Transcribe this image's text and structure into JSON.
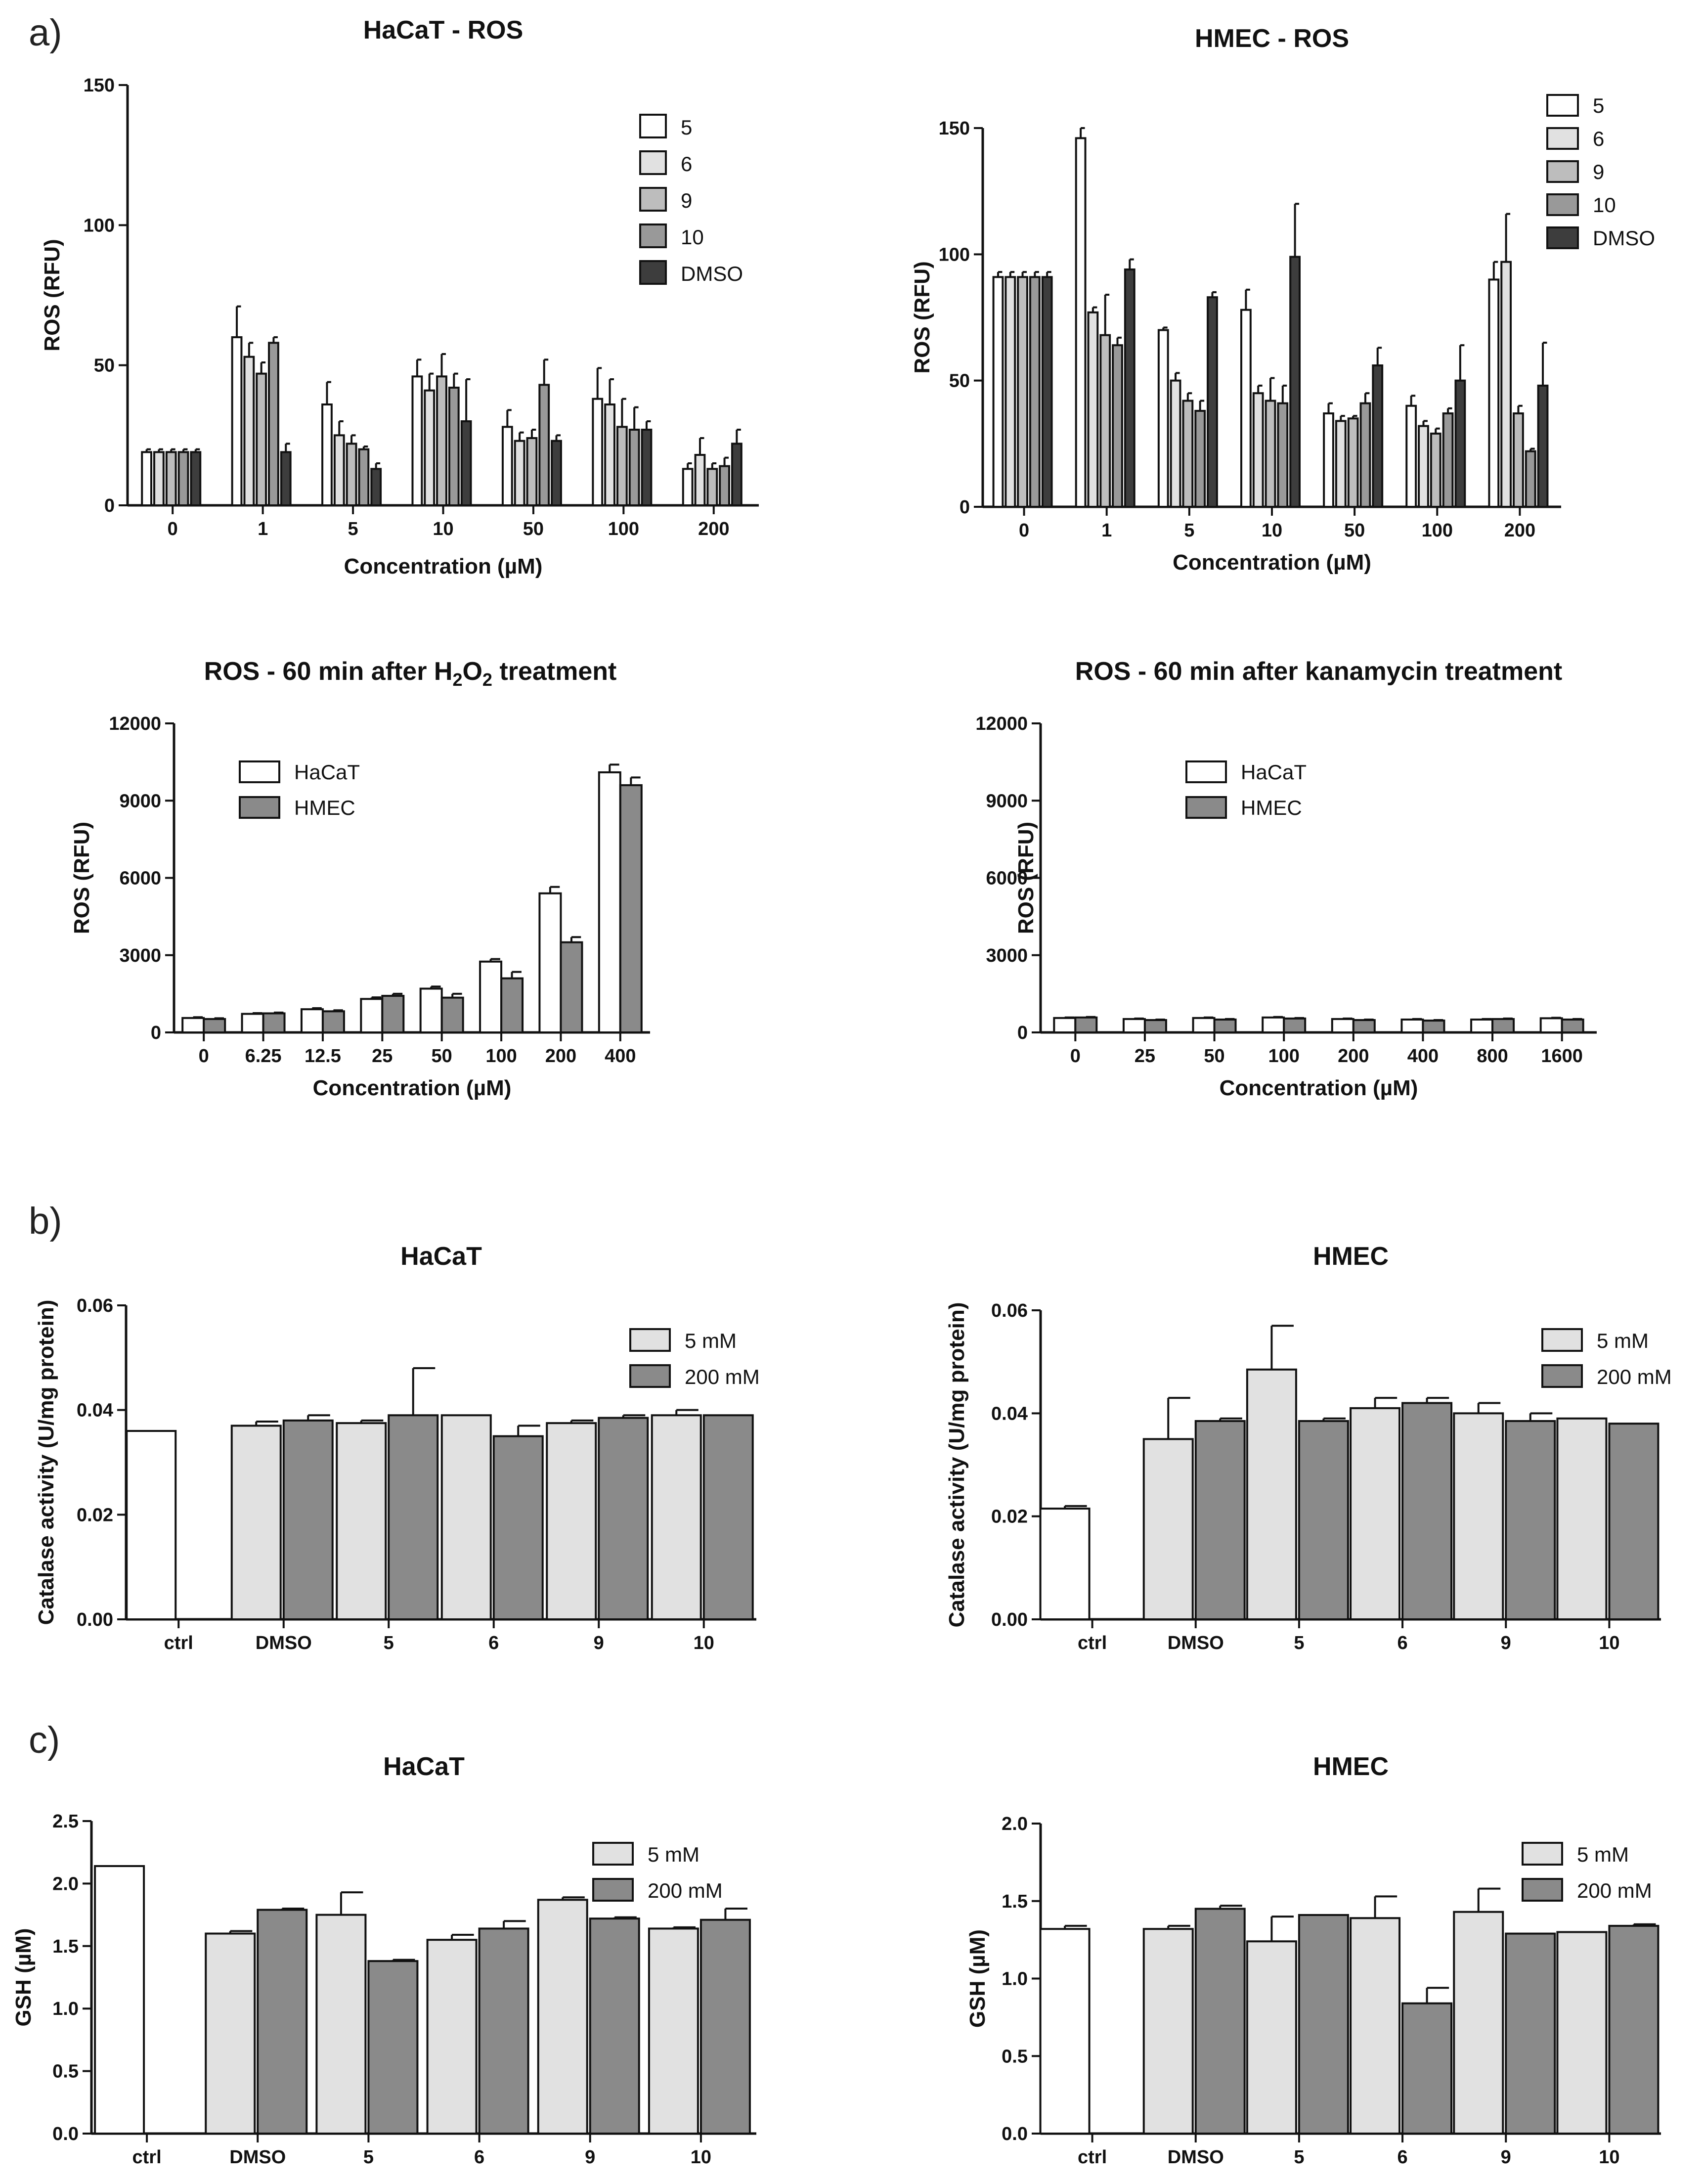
{
  "panel_labels": [
    "a)",
    "b)",
    "c)"
  ],
  "chart_data": [
    {
      "id": "a1",
      "type": "bar",
      "title": "HaCaT - ROS",
      "xlabel": "Concentration (µM)",
      "ylabel": "ROS (RFU)",
      "ylim": [
        0,
        150
      ],
      "yticks": [
        "0",
        "50",
        "100",
        "150"
      ],
      "categories": [
        "0",
        "1",
        "5",
        "10",
        "50",
        "100",
        "200"
      ],
      "series": [
        {
          "name": "5",
          "color": "#ffffff",
          "values": [
            19,
            60,
            36,
            46,
            28,
            38,
            13
          ],
          "errors": [
            1,
            11,
            8,
            6,
            6,
            11,
            2
          ]
        },
        {
          "name": "6",
          "color": "#e1e1e1",
          "values": [
            19,
            53,
            25,
            41,
            23,
            36,
            18
          ],
          "errors": [
            1,
            5,
            5,
            6,
            3,
            9,
            6
          ]
        },
        {
          "name": "9",
          "color": "#bdbdbd",
          "values": [
            19,
            47,
            22,
            46,
            24,
            28,
            13
          ],
          "errors": [
            1,
            4,
            3,
            8,
            3,
            10,
            2
          ]
        },
        {
          "name": "10",
          "color": "#999999",
          "values": [
            19,
            58,
            20,
            42,
            43,
            27,
            14
          ],
          "errors": [
            1,
            2,
            1,
            5,
            9,
            8,
            3
          ]
        },
        {
          "name": "DMSO",
          "color": "#3d3d3d",
          "values": [
            19,
            19,
            13,
            30,
            23,
            27,
            22
          ],
          "errors": [
            1,
            3,
            2,
            15,
            2,
            3,
            5
          ]
        }
      ]
    },
    {
      "id": "a2",
      "type": "bar",
      "title": "HMEC - ROS",
      "xlabel": "Concentration (µM)",
      "ylabel": "ROS (RFU)",
      "ylim": [
        0,
        150
      ],
      "yticks": [
        "0",
        "50",
        "100",
        "150"
      ],
      "categories": [
        "0",
        "1",
        "5",
        "10",
        "50",
        "100",
        "200"
      ],
      "series": [
        {
          "name": "5",
          "color": "#ffffff",
          "values": [
            91,
            146,
            70,
            78,
            37,
            40,
            90
          ],
          "errors": [
            2,
            4,
            1,
            8,
            4,
            4,
            7
          ]
        },
        {
          "name": "6",
          "color": "#e1e1e1",
          "values": [
            91,
            77,
            50,
            45,
            34,
            32,
            97
          ],
          "errors": [
            2,
            2,
            3,
            3,
            2,
            2,
            19
          ]
        },
        {
          "name": "9",
          "color": "#bdbdbd",
          "values": [
            91,
            68,
            42,
            42,
            35,
            29,
            37
          ],
          "errors": [
            2,
            16,
            3,
            9,
            1,
            2,
            3
          ]
        },
        {
          "name": "10",
          "color": "#999999",
          "values": [
            91,
            64,
            38,
            41,
            41,
            37,
            22
          ],
          "errors": [
            2,
            3,
            4,
            7,
            4,
            2,
            1
          ]
        },
        {
          "name": "DMSO",
          "color": "#3d3d3d",
          "values": [
            91,
            94,
            83,
            99,
            56,
            50,
            48
          ],
          "errors": [
            2,
            4,
            2,
            21,
            7,
            14,
            17
          ]
        }
      ]
    },
    {
      "id": "a3",
      "type": "bar",
      "title_pre": "ROS - 60 min after H",
      "title_sub1": "2",
      "title_mid": "O",
      "title_sub2": "2",
      "title_post": " treatment",
      "xlabel": "Concentration (µM)",
      "ylabel": "ROS (RFU)",
      "ylim": [
        0,
        12000
      ],
      "yticks": [
        "0",
        "3000",
        "6000",
        "9000",
        "12000"
      ],
      "categories": [
        "0",
        "6.25",
        "12.5",
        "25",
        "50",
        "100",
        "200",
        "400"
      ],
      "series": [
        {
          "name": "HaCaT",
          "color": "#ffffff",
          "values": [
            560,
            720,
            900,
            1300,
            1700,
            2750,
            5400,
            10100
          ],
          "errors": [
            30,
            30,
            40,
            60,
            80,
            100,
            250,
            300
          ]
        },
        {
          "name": "HMEC",
          "color": "#8a8a8a",
          "values": [
            520,
            740,
            820,
            1420,
            1350,
            2100,
            3500,
            9600
          ],
          "errors": [
            30,
            30,
            40,
            80,
            150,
            250,
            200,
            300
          ]
        }
      ]
    },
    {
      "id": "a4",
      "type": "bar",
      "title": "ROS - 60 min after kanamycin treatment",
      "xlabel": "Concentration (µM)",
      "ylabel": "ROS (RFU)",
      "ylim": [
        0,
        12000
      ],
      "yticks": [
        "0",
        "3000",
        "6000",
        "9000",
        "12000"
      ],
      "categories": [
        "0",
        "25",
        "50",
        "100",
        "200",
        "400",
        "800",
        "1600"
      ],
      "series": [
        {
          "name": "HaCaT",
          "color": "#ffffff",
          "values": [
            560,
            520,
            560,
            580,
            520,
            500,
            500,
            550
          ],
          "errors": [
            20,
            20,
            20,
            20,
            20,
            20,
            20,
            20
          ]
        },
        {
          "name": "HMEC",
          "color": "#8a8a8a",
          "values": [
            580,
            480,
            500,
            540,
            480,
            460,
            520,
            500
          ],
          "errors": [
            20,
            20,
            20,
            20,
            20,
            20,
            20,
            20
          ]
        }
      ]
    },
    {
      "id": "b1",
      "type": "bar",
      "title": "HaCaT",
      "xlabel": "",
      "ylabel": "Catalase activity (U/mg protein)",
      "ylim": [
        0,
        0.06
      ],
      "yticks": [
        "0.00",
        "0.02",
        "0.04",
        "0.06"
      ],
      "categories": [
        "ctrl",
        "DMSO",
        "5",
        "6",
        "9",
        "10"
      ],
      "ctrl": {
        "value": 0.036,
        "error": 0,
        "color": "#ffffff"
      },
      "series": [
        {
          "name": "5 mM",
          "color": "#e1e1e1",
          "values": [
            null,
            0.037,
            0.0375,
            0.039,
            0.0375,
            0.039
          ],
          "errors": [
            0,
            0.0008,
            0.0005,
            0,
            0.0005,
            0.001
          ]
        },
        {
          "name": "200 mM",
          "color": "#8a8a8a",
          "values": [
            null,
            0.038,
            0.039,
            0.035,
            0.0385,
            0.039
          ],
          "errors": [
            0,
            0.001,
            0.009,
            0.002,
            0.0005,
            0
          ]
        }
      ]
    },
    {
      "id": "b2",
      "type": "bar",
      "title": "HMEC",
      "xlabel": "",
      "ylabel": "Catalase activity (U/mg protein)",
      "ylim": [
        0,
        0.06
      ],
      "yticks": [
        "0.00",
        "0.02",
        "0.04",
        "0.06"
      ],
      "categories": [
        "ctrl",
        "DMSO",
        "5",
        "6",
        "9",
        "10"
      ],
      "ctrl": {
        "value": 0.0215,
        "error": 0.0005,
        "color": "#ffffff"
      },
      "series": [
        {
          "name": "5 mM",
          "color": "#e1e1e1",
          "values": [
            null,
            0.035,
            0.0485,
            0.041,
            0.04,
            0.039
          ],
          "errors": [
            0,
            0.008,
            0.0085,
            0.002,
            0.002,
            0
          ]
        },
        {
          "name": "200 mM",
          "color": "#8a8a8a",
          "values": [
            null,
            0.0385,
            0.0385,
            0.042,
            0.0385,
            0.038
          ],
          "errors": [
            0,
            0.0005,
            0.0005,
            0.001,
            0.0015,
            0
          ]
        }
      ]
    },
    {
      "id": "c1",
      "type": "bar",
      "title": "HaCaT",
      "xlabel": "",
      "ylabel": "GSH (µM)",
      "ylim": [
        0,
        2.5
      ],
      "yticks": [
        "0.0",
        "0.5",
        "1.0",
        "1.5",
        "2.0",
        "2.5"
      ],
      "categories": [
        "ctrl",
        "DMSO",
        "5",
        "6",
        "9",
        "10"
      ],
      "ctrl": {
        "value": 2.14,
        "error": 0,
        "color": "#ffffff"
      },
      "series": [
        {
          "name": "5 mM",
          "color": "#e1e1e1",
          "values": [
            null,
            1.6,
            1.75,
            1.55,
            1.87,
            1.64
          ],
          "errors": [
            0,
            0.02,
            0.18,
            0.04,
            0.02,
            0.01
          ]
        },
        {
          "name": "200 mM",
          "color": "#8a8a8a",
          "values": [
            null,
            1.79,
            1.38,
            1.64,
            1.72,
            1.71
          ],
          "errors": [
            0,
            0.01,
            0.01,
            0.06,
            0.01,
            0.09
          ]
        }
      ]
    },
    {
      "id": "c2",
      "type": "bar",
      "title": "HMEC",
      "xlabel": "",
      "ylabel": "GSH (µM)",
      "ylim": [
        0,
        2.0
      ],
      "yticks": [
        "0.0",
        "0.5",
        "1.0",
        "1.5",
        "2.0"
      ],
      "categories": [
        "ctrl",
        "DMSO",
        "5",
        "6",
        "9",
        "10"
      ],
      "ctrl": {
        "value": 1.32,
        "error": 0.02,
        "color": "#ffffff"
      },
      "series": [
        {
          "name": "5 mM",
          "color": "#e1e1e1",
          "values": [
            null,
            1.32,
            1.24,
            1.39,
            1.43,
            1.3
          ],
          "errors": [
            0,
            0.02,
            0.16,
            0.14,
            0.15,
            0
          ]
        },
        {
          "name": "200 mM",
          "color": "#8a8a8a",
          "values": [
            null,
            1.45,
            1.41,
            0.84,
            1.29,
            1.34
          ],
          "errors": [
            0,
            0.02,
            0,
            0.1,
            0,
            0.01
          ]
        }
      ]
    }
  ]
}
